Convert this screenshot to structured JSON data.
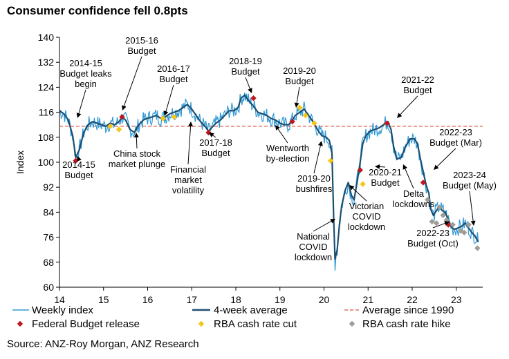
{
  "title": "Consumer confidence fell 0.8pts",
  "source": "Source: ANZ-Roy Morgan, ANZ Research",
  "chart_data": {
    "type": "line",
    "title": "Consumer confidence fell 0.8pts",
    "xlabel": "",
    "ylabel": "Index",
    "ylim": [
      60,
      140
    ],
    "yticks": [
      60,
      68,
      76,
      84,
      92,
      100,
      108,
      116,
      124,
      132,
      140
    ],
    "xlim": [
      2014,
      2023.6
    ],
    "xticks": [
      2014,
      2015,
      2016,
      2017,
      2018,
      2019,
      2020,
      2021,
      2022,
      2023
    ],
    "xtick_labels": [
      "14",
      "15",
      "16",
      "17",
      "18",
      "19",
      "20",
      "21",
      "22",
      "23"
    ],
    "grid": false,
    "average_since_1990": 111.5,
    "series": [
      {
        "name": "4-week average",
        "color": "#1b4f72",
        "points": [
          [
            2014.0,
            116.5
          ],
          [
            2014.1,
            115.5
          ],
          [
            2014.2,
            113.5
          ],
          [
            2014.3,
            108.5
          ],
          [
            2014.37,
            101.5
          ],
          [
            2014.45,
            104.0
          ],
          [
            2014.55,
            109.5
          ],
          [
            2014.65,
            112.0
          ],
          [
            2014.75,
            113.0
          ],
          [
            2014.85,
            112.5
          ],
          [
            2014.95,
            112.0
          ],
          [
            2015.05,
            111.5
          ],
          [
            2015.15,
            112.5
          ],
          [
            2015.25,
            112.0
          ],
          [
            2015.35,
            113.0
          ],
          [
            2015.42,
            114.5
          ],
          [
            2015.5,
            113.5
          ],
          [
            2015.6,
            110.5
          ],
          [
            2015.7,
            109.5
          ],
          [
            2015.8,
            112.0
          ],
          [
            2015.9,
            113.5
          ],
          [
            2015.98,
            114.0
          ],
          [
            2016.1,
            114.5
          ],
          [
            2016.2,
            115.0
          ],
          [
            2016.3,
            114.0
          ],
          [
            2016.4,
            114.5
          ],
          [
            2016.5,
            115.5
          ],
          [
            2016.6,
            116.0
          ],
          [
            2016.7,
            116.5
          ],
          [
            2016.8,
            117.5
          ],
          [
            2016.9,
            118.5
          ],
          [
            2017.0,
            117.0
          ],
          [
            2017.1,
            115.0
          ],
          [
            2017.2,
            113.0
          ],
          [
            2017.3,
            111.5
          ],
          [
            2017.38,
            110.0
          ],
          [
            2017.45,
            111.0
          ],
          [
            2017.55,
            112.5
          ],
          [
            2017.65,
            113.5
          ],
          [
            2017.75,
            115.0
          ],
          [
            2017.85,
            116.5
          ],
          [
            2017.95,
            116.5
          ],
          [
            2018.05,
            117.5
          ],
          [
            2018.12,
            120.5
          ],
          [
            2018.2,
            121.5
          ],
          [
            2018.3,
            119.5
          ],
          [
            2018.4,
            118.0
          ],
          [
            2018.5,
            116.0
          ],
          [
            2018.6,
            115.5
          ],
          [
            2018.7,
            115.0
          ],
          [
            2018.8,
            114.0
          ],
          [
            2018.9,
            113.5
          ],
          [
            2019.0,
            112.5
          ],
          [
            2019.1,
            112.0
          ],
          [
            2019.2,
            112.0
          ],
          [
            2019.28,
            113.5
          ],
          [
            2019.35,
            115.0
          ],
          [
            2019.45,
            116.0
          ],
          [
            2019.55,
            117.0
          ],
          [
            2019.65,
            115.0
          ],
          [
            2019.75,
            113.0
          ],
          [
            2019.85,
            110.5
          ],
          [
            2019.95,
            108.5
          ],
          [
            2020.05,
            108.0
          ],
          [
            2020.12,
            107.0
          ],
          [
            2020.18,
            103.0
          ],
          [
            2020.22,
            82.0
          ],
          [
            2020.25,
            69.0
          ],
          [
            2020.3,
            72.0
          ],
          [
            2020.35,
            80.0
          ],
          [
            2020.4,
            86.0
          ],
          [
            2020.48,
            91.0
          ],
          [
            2020.55,
            93.5
          ],
          [
            2020.62,
            89.5
          ],
          [
            2020.68,
            88.0
          ],
          [
            2020.75,
            93.5
          ],
          [
            2020.82,
            100.0
          ],
          [
            2020.88,
            106.0
          ],
          [
            2020.95,
            108.5
          ],
          [
            2021.05,
            110.0
          ],
          [
            2021.15,
            110.5
          ],
          [
            2021.25,
            111.0
          ],
          [
            2021.35,
            112.0
          ],
          [
            2021.45,
            113.0
          ],
          [
            2021.52,
            110.5
          ],
          [
            2021.58,
            105.0
          ],
          [
            2021.65,
            101.0
          ],
          [
            2021.75,
            101.5
          ],
          [
            2021.85,
            105.0
          ],
          [
            2021.95,
            107.5
          ],
          [
            2022.05,
            107.5
          ],
          [
            2022.12,
            106.0
          ],
          [
            2022.18,
            101.5
          ],
          [
            2022.25,
            97.0
          ],
          [
            2022.32,
            92.5
          ],
          [
            2022.38,
            90.0
          ],
          [
            2022.42,
            85.0
          ],
          [
            2022.48,
            83.0
          ],
          [
            2022.55,
            84.5
          ],
          [
            2022.62,
            86.0
          ],
          [
            2022.68,
            84.5
          ],
          [
            2022.75,
            84.0
          ],
          [
            2022.82,
            81.5
          ],
          [
            2022.88,
            79.5
          ],
          [
            2022.95,
            78.5
          ],
          [
            2023.05,
            79.0
          ],
          [
            2023.12,
            79.5
          ],
          [
            2023.2,
            80.5
          ],
          [
            2023.28,
            79.0
          ],
          [
            2023.35,
            77.5
          ],
          [
            2023.42,
            76.5
          ],
          [
            2023.5,
            74.5
          ]
        ]
      },
      {
        "name": "Weekly index",
        "color": "#2e9ad6",
        "note": "weekly volatile series plotted around the 4-week average; COVID low approx 65.3 (2020.25)"
      },
      {
        "name": "Average since 1990",
        "color": "#e8705c",
        "value": 111.5
      }
    ],
    "markers": [
      {
        "name": "Federal Budget release",
        "color": "#c0161e",
        "shape": "diamond",
        "points": [
          [
            2014.37,
            100.5
          ],
          [
            2015.42,
            114.5
          ],
          [
            2017.38,
            109.5
          ],
          [
            2018.4,
            120.5
          ],
          [
            2019.28,
            113.0
          ],
          [
            2020.82,
            97.5
          ],
          [
            2021.43,
            112.5
          ],
          [
            2022.25,
            93.5
          ],
          [
            2022.82,
            80.0
          ]
        ]
      },
      {
        "name": "RBA cash rate cut",
        "color": "#f5c518",
        "shape": "diamond",
        "points": [
          [
            2015.15,
            111.5
          ],
          [
            2015.35,
            110.5
          ],
          [
            2016.35,
            114.0
          ],
          [
            2016.6,
            114.5
          ],
          [
            2019.45,
            117.5
          ],
          [
            2019.58,
            115.0
          ],
          [
            2019.78,
            112.5
          ],
          [
            2020.15,
            100.5
          ],
          [
            2020.88,
            93.0
          ]
        ]
      },
      {
        "name": "RBA cash rate hike",
        "color": "#a09c96",
        "shape": "diamond",
        "points": [
          [
            2022.35,
            88.0
          ],
          [
            2022.45,
            81.0
          ],
          [
            2022.55,
            80.5
          ],
          [
            2022.62,
            85.5
          ],
          [
            2022.7,
            83.0
          ],
          [
            2022.78,
            81.5
          ],
          [
            2022.92,
            80.0
          ],
          [
            2023.1,
            78.0
          ],
          [
            2023.18,
            77.5
          ],
          [
            2023.28,
            80.0
          ],
          [
            2023.48,
            72.5
          ]
        ]
      }
    ],
    "annotations": [
      {
        "label": "2014-15\nBudget leaks\nbegin",
        "x": 2014.3,
        "y": 113.5
      },
      {
        "label": "2014-15\nBudget",
        "x": 2014.4,
        "y": 101.0
      },
      {
        "label": "2015-16\nBudget",
        "x": 2015.42,
        "y": 115.0
      },
      {
        "label": "China stock\nmarket plunge",
        "x": 2015.6,
        "y": 110.0
      },
      {
        "label": "2016-17\nBudget",
        "x": 2016.35,
        "y": 113.5
      },
      {
        "label": "Financial\nmarket\nvolatility",
        "x": 2016.97,
        "y": 111.0
      },
      {
        "label": "2017-18\nBudget",
        "x": 2017.38,
        "y": 109.5
      },
      {
        "label": "2018-19\nBudget",
        "x": 2018.4,
        "y": 121.0
      },
      {
        "label": "2019-20\nBudget",
        "x": 2019.3,
        "y": 115.5
      },
      {
        "label": "Wentworth\nby-election",
        "x": 2018.9,
        "y": 110.5
      },
      {
        "label": "2019-20\nbushfires",
        "x": 2019.98,
        "y": 108.0
      },
      {
        "label": "National\nCOVID\nlockdown",
        "x": 2020.25,
        "y": 65.5
      },
      {
        "label": "Victorian\nCOVID\nlockdown",
        "x": 2020.7,
        "y": 86.0
      },
      {
        "label": "2020-21\nBudget",
        "x": 2020.85,
        "y": 97.5
      },
      {
        "label": "2021-22\nBudget",
        "x": 2021.43,
        "y": 113.0
      },
      {
        "label": "Delta\nlockdowns",
        "x": 2021.65,
        "y": 101.0
      },
      {
        "label": "2022-23\nBudget (Mar)",
        "x": 2022.42,
        "y": 104.0
      },
      {
        "label": "2022-23\nBudget (Oct)",
        "x": 2022.82,
        "y": 80.0
      },
      {
        "label": "2023-24\nBudget (May)",
        "x": 2023.35,
        "y": 79.0
      }
    ]
  },
  "legend": {
    "row1": [
      "Weekly index",
      "4-week average",
      "Average since 1990"
    ],
    "row2": [
      "Federal Budget release",
      "RBA cash rate cut",
      "RBA cash rate hike"
    ]
  }
}
